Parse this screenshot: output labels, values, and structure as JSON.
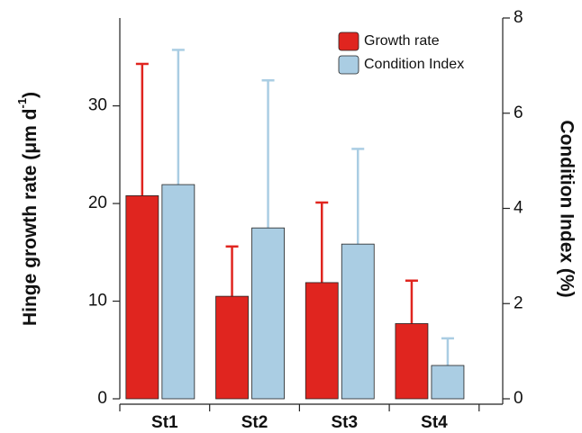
{
  "chart_data": {
    "type": "bar",
    "categories": [
      "St1",
      "St2",
      "St3",
      "St4"
    ],
    "y_label": "Hinge growth rate (μm d",
    "y_label_sup": "-1",
    "y_label_end": ")",
    "y2_label": "Condition Index (%)",
    "ylim": [
      0,
      39
    ],
    "yticks": [
      0,
      10,
      20,
      30
    ],
    "y2lim": [
      0,
      8
    ],
    "y2ticks": [
      0,
      2,
      4,
      6,
      8
    ],
    "series": [
      {
        "name": "Growth rate",
        "color": "#e0251f",
        "values": [
          20.8,
          10.5,
          11.9,
          7.7
        ],
        "errors": [
          13.5,
          5.1,
          8.2,
          4.4
        ]
      },
      {
        "name": "Condition Index",
        "color": "#aacde3",
        "axis": "y2",
        "values": [
          4.5,
          3.59,
          3.25,
          0.7
        ],
        "errors": [
          2.83,
          3.1,
          2.0,
          0.57
        ]
      }
    ],
    "legend": "upper right"
  }
}
